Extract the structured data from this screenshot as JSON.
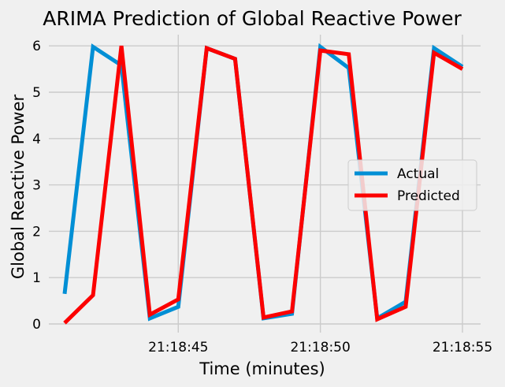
{
  "chart_data": {
    "type": "line",
    "title": "ARIMA Prediction of Global Reactive Power",
    "xlabel": "Time (minutes)",
    "ylabel": "Global Reactive Power",
    "x": [
      "21:18:41",
      "21:18:42",
      "21:18:43",
      "21:18:44",
      "21:18:45",
      "21:18:46",
      "21:18:47",
      "21:18:48",
      "21:18:49",
      "21:18:50",
      "21:18:51",
      "21:18:52",
      "21:18:53",
      "21:18:54",
      "21:18:55"
    ],
    "xticks": [
      "21:18:45",
      "21:18:50",
      "21:18:55"
    ],
    "yticks": [
      "0",
      "1",
      "2",
      "3",
      "4",
      "5",
      "6"
    ],
    "ylim": [
      -0.2,
      6.3
    ],
    "grid": true,
    "legend_position": "center-right",
    "series": [
      {
        "name": "Actual",
        "color": "#008fd5",
        "values": [
          0.65,
          5.98,
          5.58,
          0.12,
          0.37,
          5.95,
          5.72,
          0.12,
          0.22,
          5.98,
          5.52,
          0.12,
          0.48,
          5.95,
          5.55
        ]
      },
      {
        "name": "Predicted",
        "color": "#fc0000",
        "values": [
          0.02,
          0.62,
          6.0,
          0.2,
          0.53,
          5.95,
          5.72,
          0.14,
          0.27,
          5.9,
          5.82,
          0.1,
          0.37,
          5.85,
          5.5
        ]
      }
    ]
  }
}
